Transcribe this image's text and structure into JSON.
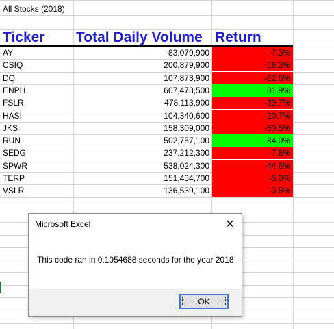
{
  "sheet": {
    "title": "All Stocks (2018)",
    "headers": {
      "ticker": "Ticker",
      "volume": "Total Daily Volume",
      "return": "Return"
    },
    "rows": [
      {
        "ticker": "AY",
        "volume": "83,079,900",
        "return": "-7.3%",
        "positive": false
      },
      {
        "ticker": "CSIQ",
        "volume": "200,879,900",
        "return": "-16.3%",
        "positive": false
      },
      {
        "ticker": "DQ",
        "volume": "107,873,900",
        "return": "-62.6%",
        "positive": false
      },
      {
        "ticker": "ENPH",
        "volume": "607,473,500",
        "return": "81.9%",
        "positive": true
      },
      {
        "ticker": "FSLR",
        "volume": "478,113,900",
        "return": "-39.7%",
        "positive": false
      },
      {
        "ticker": "HASI",
        "volume": "104,340,600",
        "return": "-20.7%",
        "positive": false
      },
      {
        "ticker": "JKS",
        "volume": "158,309,000",
        "return": "-60.5%",
        "positive": false
      },
      {
        "ticker": "RUN",
        "volume": "502,757,100",
        "return": "84.0%",
        "positive": true
      },
      {
        "ticker": "SEDG",
        "volume": "237,212,300",
        "return": "-7.8%",
        "positive": false
      },
      {
        "ticker": "SPWR",
        "volume": "538,024,300",
        "return": "-44.6%",
        "positive": false
      },
      {
        "ticker": "TERP",
        "volume": "151,434,700",
        "return": "-5.0%",
        "positive": false
      },
      {
        "ticker": "VSLR",
        "volume": "136,539,100",
        "return": "-3.5%",
        "positive": false
      }
    ]
  },
  "colors": {
    "header_text": "#1f1fd0",
    "negative_fill": "#ff0000",
    "positive_fill": "#00ff00",
    "gridline": "#d4d4d4"
  },
  "dialog": {
    "title": "Microsoft Excel",
    "message": "This code ran in 0.1054688 seconds for the year 2018",
    "ok_label": "OK",
    "close_glyph": "✕"
  }
}
